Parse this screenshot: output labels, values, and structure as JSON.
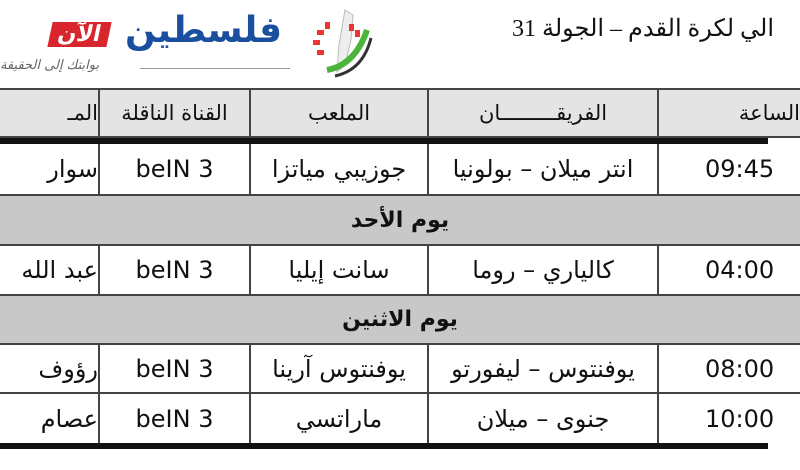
{
  "title": "الي لكرة القدم – الجولة 31",
  "logo": {
    "name": "فلسطين",
    "badge": "الآن",
    "tagline": "بوابتك إلى الحقيقة"
  },
  "table": {
    "headers": {
      "referee": "المـ",
      "channel": "القناة الناقلة",
      "stadium": "الملعب",
      "teams": "الفريقـــــــــان",
      "time": "الساعة"
    },
    "rows": [
      {
        "type": "match",
        "time": "09:45",
        "teams": "انتر ميلان – بولونيا",
        "stadium": "جوزيبي مياتزا",
        "channel": "beIN 3",
        "referee": "سوار"
      },
      {
        "type": "day",
        "label": "يوم الأحد"
      },
      {
        "type": "match",
        "time": "04:00",
        "teams": "كالياري – روما",
        "stadium": "سانت إيليا",
        "channel": "beIN 3",
        "referee": "عبد الله"
      },
      {
        "type": "day",
        "label": "يوم الاثنين"
      },
      {
        "type": "match",
        "time": "08:00",
        "teams": "يوفنتوس – ليفورتو",
        "stadium": "يوفنتوس آرينا",
        "channel": "beIN 3",
        "referee": "رؤوف"
      },
      {
        "type": "match",
        "time": "10:00",
        "teams": "جنوى – ميلان",
        "stadium": "ماراتسي",
        "channel": "beIN 3",
        "referee": "عصام"
      }
    ]
  },
  "colors": {
    "header_bg": "#e4e4e4",
    "day_bg": "#c8c8c8",
    "logo_blue": "#1a4fa0",
    "logo_red": "#d8262c"
  }
}
